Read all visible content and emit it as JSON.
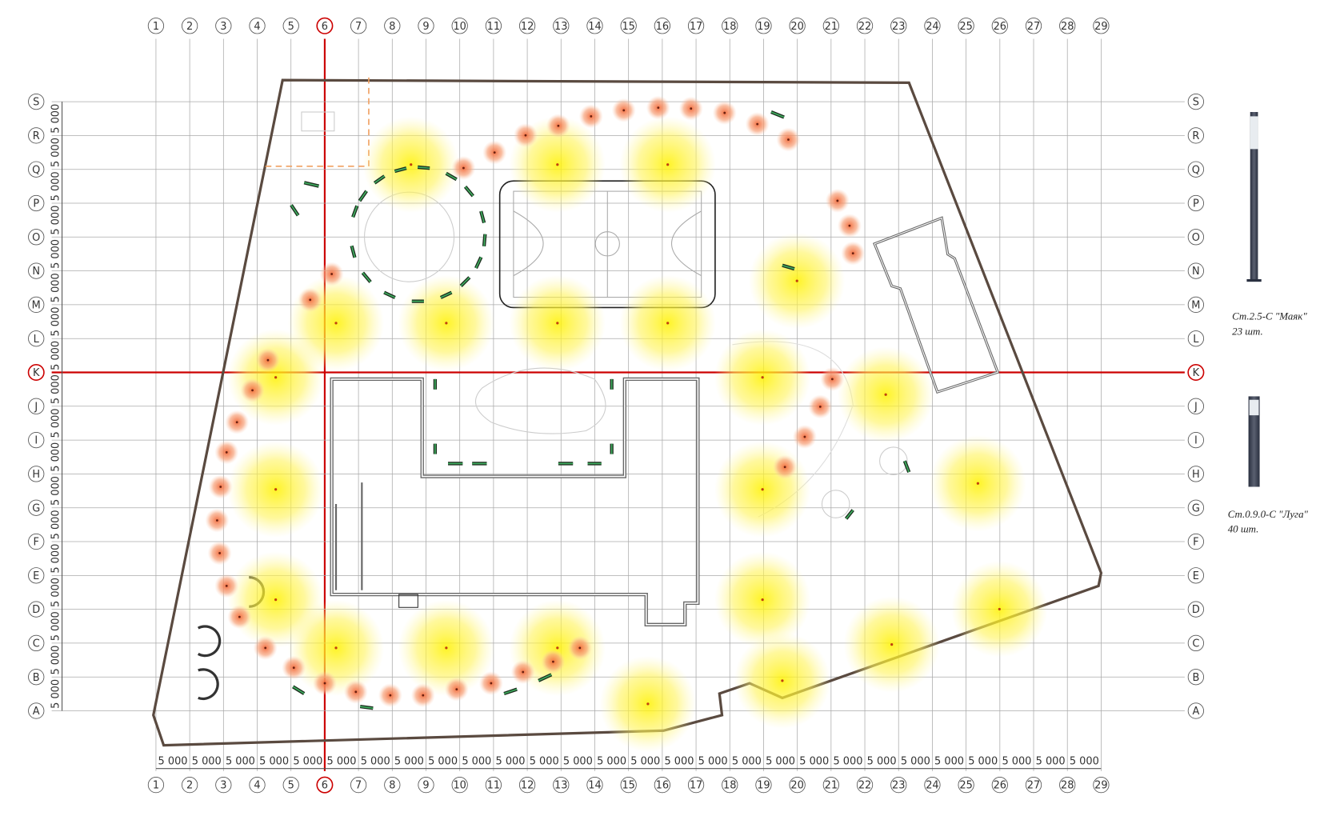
{
  "columns": [
    "1",
    "2",
    "3",
    "4",
    "5",
    "6",
    "7",
    "8",
    "9",
    "10",
    "11",
    "12",
    "13",
    "14",
    "15",
    "16",
    "17",
    "18",
    "19",
    "20",
    "21",
    "22",
    "23",
    "24",
    "25",
    "26",
    "27",
    "28",
    "29"
  ],
  "rows": [
    "S",
    "R",
    "Q",
    "P",
    "O",
    "N",
    "M",
    "L",
    "K",
    "J",
    "I",
    "H",
    "G",
    "F",
    "E",
    "D",
    "C",
    "B",
    "A"
  ],
  "highlight": {
    "column": "6",
    "row": "K"
  },
  "bottom_dimensions": [
    "5 000",
    "5 000",
    "5 000",
    "5 000",
    "5 000",
    "5 000",
    "5 000",
    "5 000",
    "5 000",
    "5 000",
    "5 000",
    "5 000",
    "5 000",
    "5 000",
    "5 000",
    "5 000",
    "5 000",
    "5 000",
    "5 000",
    "5 000",
    "5 000",
    "5 000",
    "5 000",
    "5 000",
    "5 000",
    "5 000",
    "5 000",
    "5 000"
  ],
  "left_dimensions": [
    "5 000",
    "5 000",
    "5 000",
    "5 000",
    "5 000",
    "5 000",
    "5 000",
    "5 000",
    "5 000",
    "5 000",
    "5 000",
    "5 000",
    "5 000",
    "5 000",
    "5 000",
    "5 000",
    "5 000",
    "5 000"
  ],
  "legend": [
    {
      "name": "Ст.2.5-С \"Маяк\"",
      "count": "23 шт."
    },
    {
      "name": "Ст.0.9.0-С \"Луга\"",
      "count": "40 шт."
    }
  ]
}
